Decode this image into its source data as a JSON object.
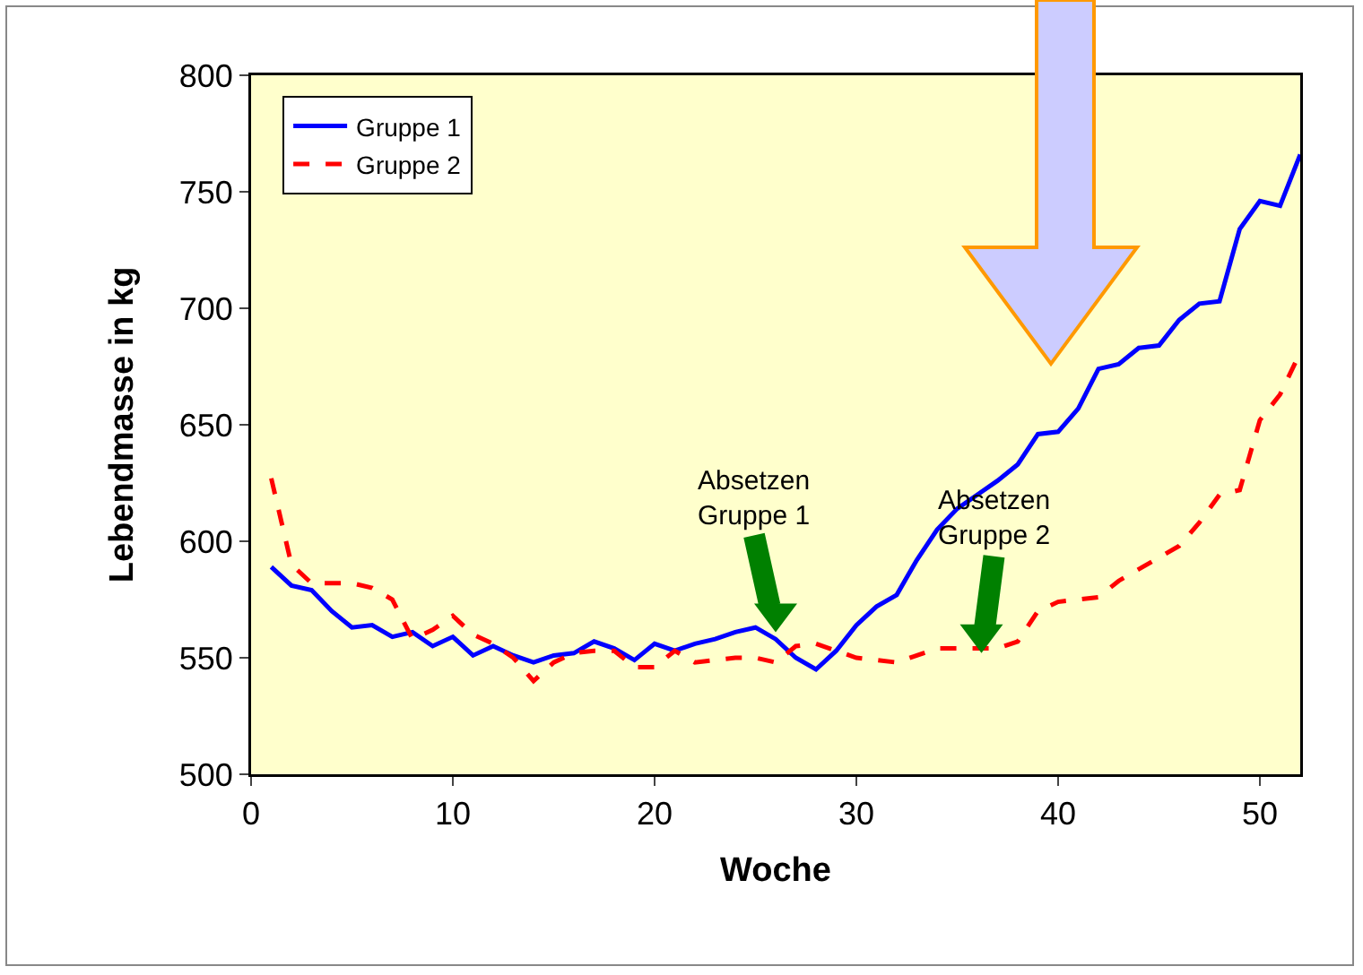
{
  "chart_data": {
    "type": "line",
    "xlabel": "Woche",
    "ylabel": "Lebendmasse in kg",
    "x": [
      1,
      2,
      3,
      4,
      5,
      6,
      7,
      8,
      9,
      10,
      11,
      12,
      13,
      14,
      15,
      16,
      17,
      18,
      19,
      20,
      21,
      22,
      23,
      24,
      25,
      26,
      27,
      28,
      29,
      30,
      31,
      32,
      33,
      34,
      35,
      36,
      37,
      38,
      39,
      40,
      41,
      42,
      43,
      44,
      45,
      46,
      47,
      48,
      49,
      50,
      51,
      52
    ],
    "series": [
      {
        "name": "Gruppe 1",
        "color": "#0000ff",
        "line_style": "solid",
        "values": [
          589,
          581,
          579,
          570,
          563,
          564,
          559,
          561,
          555,
          559,
          551,
          555,
          551,
          548,
          551,
          552,
          557,
          554,
          549,
          556,
          553,
          556,
          558,
          561,
          563,
          558,
          550,
          545,
          553,
          564,
          572,
          577,
          592,
          605,
          614,
          620,
          626,
          633,
          646,
          647,
          657,
          674,
          676,
          683,
          684,
          695,
          702,
          703,
          734,
          746,
          744,
          766
        ]
      },
      {
        "name": "Gruppe 2",
        "color": "#ff0000",
        "line_style": "dashed",
        "values": [
          627,
          590,
          582,
          582,
          582,
          580,
          575,
          558,
          562,
          568,
          560,
          556,
          550,
          540,
          548,
          552,
          553,
          553,
          546,
          546,
          553,
          548,
          549,
          550,
          550,
          548,
          555,
          556,
          553,
          550,
          549,
          548,
          551,
          554,
          554,
          554,
          554,
          557,
          570,
          574,
          575,
          576,
          583,
          588,
          593,
          598,
          608,
          620,
          622,
          652,
          663,
          681
        ]
      }
    ],
    "xlim": [
      0,
      52
    ],
    "xticks": [
      0,
      10,
      20,
      30,
      40,
      50
    ],
    "ylim": [
      500,
      800
    ],
    "yticks": [
      500,
      550,
      600,
      650,
      700,
      750,
      800
    ],
    "grid": false,
    "legend": "top left",
    "marker": "none",
    "annotations": [
      {
        "text": "Absetzen\nGruppe 1",
        "x": 26,
        "y": 561
      },
      {
        "text": "Absetzen\nGruppe 2",
        "x": 36.2,
        "y": 552
      }
    ]
  }
}
